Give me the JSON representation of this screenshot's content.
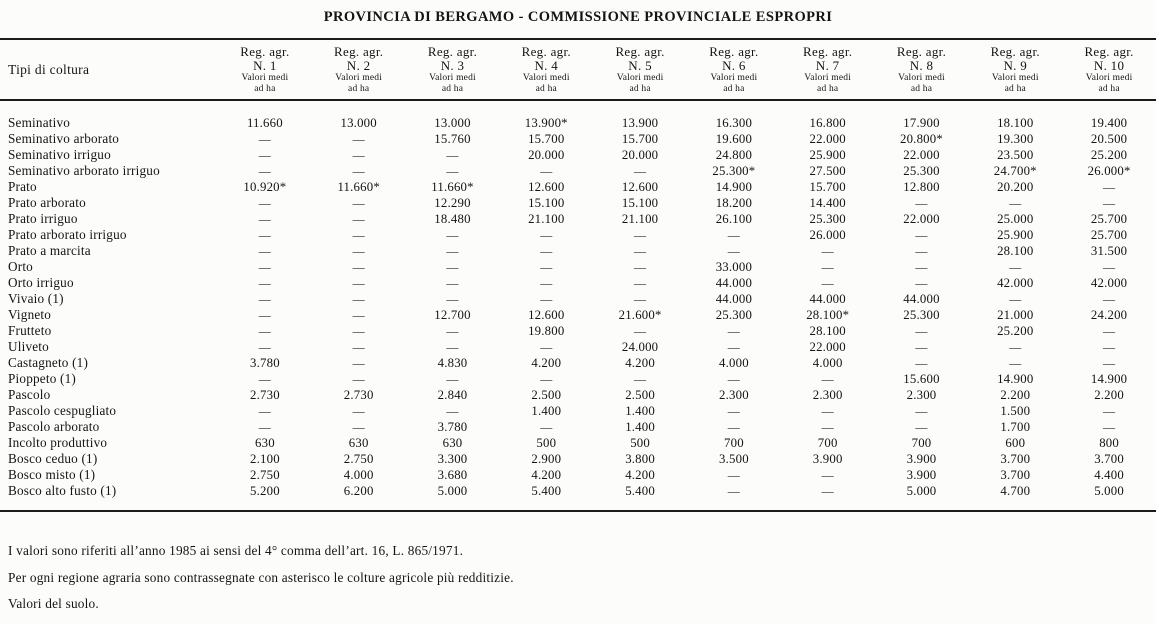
{
  "title": "PROVINCIA DI BERGAMO - COMMISSIONE PROVINCIALE ESPROPRI",
  "table": {
    "row_header": "Tipi di coltura",
    "column_header_line1": "Reg. agr.",
    "column_subheader_line1": "Valori medi",
    "column_subheader_line2": "ad ha",
    "columns": [
      "N. 1",
      "N. 2",
      "N. 3",
      "N. 4",
      "N. 5",
      "N. 6",
      "N. 7",
      "N. 8",
      "N. 9",
      "N. 10"
    ],
    "empty_cell": "—",
    "rows": [
      {
        "label": "Seminativo",
        "values": [
          "11.660",
          "13.000",
          "13.000",
          "13.900*",
          "13.900",
          "16.300",
          "16.800",
          "17.900",
          "18.100",
          "19.400"
        ]
      },
      {
        "label": "Seminativo arborato",
        "values": [
          "—",
          "—",
          "15.760",
          "15.700",
          "15.700",
          "19.600",
          "22.000",
          "20.800*",
          "19.300",
          "20.500"
        ]
      },
      {
        "label": "Seminativo irriguo",
        "values": [
          "—",
          "—",
          "—",
          "20.000",
          "20.000",
          "24.800",
          "25.900",
          "22.000",
          "23.500",
          "25.200"
        ]
      },
      {
        "label": "Seminativo arborato irriguo",
        "values": [
          "—",
          "—",
          "—",
          "—",
          "—",
          "25.300*",
          "27.500",
          "25.300",
          "24.700*",
          "26.000*"
        ]
      },
      {
        "label": "Prato",
        "values": [
          "10.920*",
          "11.660*",
          "11.660*",
          "12.600",
          "12.600",
          "14.900",
          "15.700",
          "12.800",
          "20.200",
          "—"
        ]
      },
      {
        "label": "Prato arborato",
        "values": [
          "—",
          "—",
          "12.290",
          "15.100",
          "15.100",
          "18.200",
          "14.400",
          "—",
          "—",
          "—"
        ]
      },
      {
        "label": "Prato irriguo",
        "values": [
          "—",
          "—",
          "18.480",
          "21.100",
          "21.100",
          "26.100",
          "25.300",
          "22.000",
          "25.000",
          "25.700"
        ]
      },
      {
        "label": "Prato arborato irriguo",
        "values": [
          "—",
          "—",
          "—",
          "—",
          "—",
          "—",
          "26.000",
          "—",
          "25.900",
          "25.700"
        ]
      },
      {
        "label": "Prato a marcita",
        "values": [
          "—",
          "—",
          "—",
          "—",
          "—",
          "—",
          "—",
          "—",
          "28.100",
          "31.500"
        ]
      },
      {
        "label": "Orto",
        "values": [
          "—",
          "—",
          "—",
          "—",
          "—",
          "33.000",
          "—",
          "—",
          "—",
          "—"
        ]
      },
      {
        "label": "Orto irriguo",
        "values": [
          "—",
          "—",
          "—",
          "—",
          "—",
          "44.000",
          "—",
          "—",
          "42.000",
          "42.000"
        ]
      },
      {
        "label": "Vivaio (1)",
        "values": [
          "—",
          "—",
          "—",
          "—",
          "—",
          "44.000",
          "44.000",
          "44.000",
          "—",
          "—"
        ]
      },
      {
        "label": "Vigneto",
        "values": [
          "—",
          "—",
          "12.700",
          "12.600",
          "21.600*",
          "25.300",
          "28.100*",
          "25.300",
          "21.000",
          "24.200"
        ]
      },
      {
        "label": "Frutteto",
        "values": [
          "—",
          "—",
          "—",
          "19.800",
          "—",
          "—",
          "28.100",
          "—",
          "25.200",
          "—"
        ]
      },
      {
        "label": "Uliveto",
        "values": [
          "—",
          "—",
          "—",
          "—",
          "24.000",
          "—",
          "22.000",
          "—",
          "—",
          "—"
        ]
      },
      {
        "label": "Castagneto (1)",
        "values": [
          "3.780",
          "—",
          "4.830",
          "4.200",
          "4.200",
          "4.000",
          "4.000",
          "—",
          "—",
          "—"
        ]
      },
      {
        "label": "Pioppeto (1)",
        "values": [
          "—",
          "—",
          "—",
          "—",
          "—",
          "—",
          "—",
          "15.600",
          "14.900",
          "14.900"
        ]
      },
      {
        "label": "Pascolo",
        "values": [
          "2.730",
          "2.730",
          "2.840",
          "2.500",
          "2.500",
          "2.300",
          "2.300",
          "2.300",
          "2.200",
          "2.200"
        ]
      },
      {
        "label": "Pascolo cespugliato",
        "values": [
          "—",
          "—",
          "—",
          "1.400",
          "1.400",
          "—",
          "—",
          "—",
          "1.500",
          "—"
        ]
      },
      {
        "label": "Pascolo arborato",
        "values": [
          "—",
          "—",
          "3.780",
          "—",
          "1.400",
          "—",
          "—",
          "—",
          "1.700",
          "—"
        ]
      },
      {
        "label": "Incolto produttivo",
        "values": [
          "630",
          "630",
          "630",
          "500",
          "500",
          "700",
          "700",
          "700",
          "600",
          "800"
        ]
      },
      {
        "label": "Bosco ceduo (1)",
        "values": [
          "2.100",
          "2.750",
          "3.300",
          "2.900",
          "3.800",
          "3.500",
          "3.900",
          "3.900",
          "3.700",
          "3.700"
        ]
      },
      {
        "label": "Bosco misto (1)",
        "values": [
          "2.750",
          "4.000",
          "3.680",
          "4.200",
          "4.200",
          "—",
          "—",
          "3.900",
          "3.700",
          "4.400"
        ]
      },
      {
        "label": "Bosco alto fusto (1)",
        "values": [
          "5.200",
          "6.200",
          "5.000",
          "5.400",
          "5.400",
          "—",
          "—",
          "5.000",
          "4.700",
          "5.000"
        ]
      }
    ]
  },
  "notes": [
    "I valori sono riferiti all’anno 1985 ai sensi del 4° comma dell’art. 16, L. 865/1971.",
    "Per ogni regione agraria sono contrassegnate con asterisco le colture agricole più redditizie.",
    "Valori del suolo."
  ]
}
